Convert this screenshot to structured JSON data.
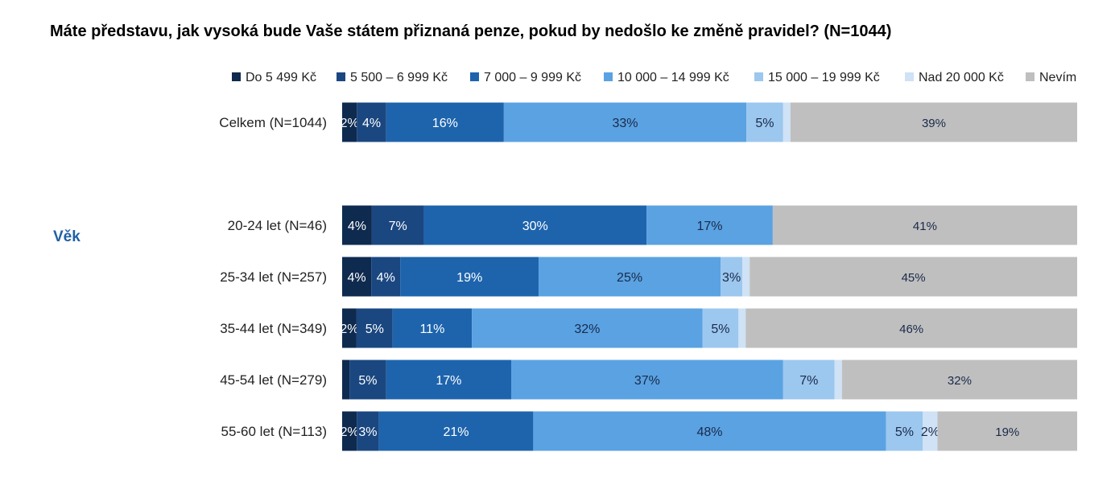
{
  "title": "Máte představu, jak vysoká bude Vaše státem přiznaná penze, pokud by nedošlo ke změně pravidel? (N=1044)",
  "side_label": "Věk",
  "chart_data": {
    "type": "bar",
    "orientation": "horizontal",
    "stacked": "percent",
    "title": "Máte představu, jak vysoká bude Vaše státem přiznaná penze, pokud by nedošlo ke změně pravidel? (N=1044)",
    "legend_position": "top",
    "categories": [
      "Celkem (N=1044)",
      "20-24 let (N=46)",
      "25-34 let (N=257)",
      "35-44 let (N=349)",
      "45-54 let (N=279)",
      "55-60 let (N=113)"
    ],
    "series": [
      {
        "name": "Do 5 499 Kč",
        "color": "#0e2a4f",
        "values": [
          2,
          4,
          4,
          2,
          1,
          2
        ],
        "labels": [
          "2%",
          "4%",
          "4%",
          "2%",
          "",
          "2%"
        ],
        "label_color": "#ffffff"
      },
      {
        "name": "5 500 – 6 999 Kč",
        "color": "#1a4780",
        "values": [
          4,
          7,
          4,
          5,
          5,
          3
        ],
        "labels": [
          "4%",
          "7%",
          "4%",
          "5%",
          "5%",
          "3%"
        ],
        "label_color": "#ffffff"
      },
      {
        "name": "7 000 – 9 999 Kč",
        "color": "#1e64ad",
        "values": [
          16,
          30,
          19,
          11,
          17,
          21
        ],
        "labels": [
          "16%",
          "30%",
          "19%",
          "11%",
          "17%",
          "21%"
        ],
        "label_color": "#ffffff"
      },
      {
        "name": "10 000 – 14 999 Kč",
        "color": "#5aa2e2",
        "values": [
          33,
          17,
          25,
          32,
          37,
          48
        ],
        "labels": [
          "33%",
          "17%",
          "25%",
          "32%",
          "37%",
          "48%"
        ],
        "label_color": "#1a2a4a"
      },
      {
        "name": "15 000 – 19 999 Kč",
        "color": "#9cc7ef",
        "values": [
          5,
          0,
          3,
          5,
          7,
          5
        ],
        "labels": [
          "5%",
          "",
          "3%",
          "5%",
          "7%",
          "5%"
        ],
        "label_color": "#1a2a4a"
      },
      {
        "name": "Nad 20 000 Kč",
        "color": "#cfe2f6",
        "values": [
          1,
          0,
          1,
          1,
          1,
          2
        ],
        "labels": [
          "",
          "",
          "",
          "",
          "",
          "2%"
        ],
        "label_color": "#1a2a4a"
      },
      {
        "name": "Nevím",
        "color": "#bfbfbf",
        "values": [
          39,
          41,
          45,
          46,
          32,
          19
        ],
        "labels": [
          "39%",
          "41%",
          "45%",
          "46%",
          "32%",
          "19%"
        ],
        "label_color": "#1a2a4a"
      }
    ]
  }
}
